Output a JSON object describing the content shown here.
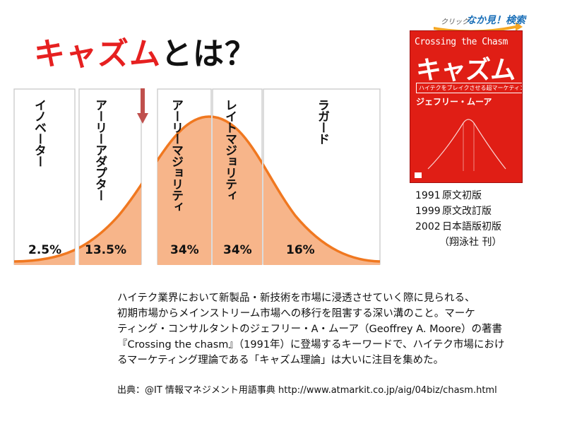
{
  "title": {
    "accent": "キャズム",
    "rest": "とは？"
  },
  "columns": [
    {
      "label": "イノベーター",
      "percent": "2.5%"
    },
    {
      "label": "アーリーアダプター",
      "percent": "13.5%"
    },
    {
      "label": "アーリーマジョリティ",
      "percent": "34%"
    },
    {
      "label": "レイトマジョリティ",
      "percent": "34%"
    },
    {
      "label": "ラガード",
      "percent": "16%"
    }
  ],
  "banner": {
    "click": "クリック",
    "main": "なか見！検索"
  },
  "book": {
    "english_title": "Crossing the Chasm",
    "title": "キャズム",
    "subtitle": "ハイテクをブレイクさせる超マーケティング理論",
    "author": "ジェフリー・ムーア"
  },
  "publication": [
    {
      "year": "1991",
      "text": "原文初版"
    },
    {
      "year": "1999",
      "text": "原文改訂版"
    },
    {
      "year": "2002",
      "text": "日本語版初版"
    }
  ],
  "publisher_note": "（翔泳社 刊）",
  "description": [
    "ハイテク業界において新製品・新技術を市場に浸透させていく際に見られる、",
    "初期市場からメインストリーム市場への移行を阻害する深い溝のこと。マーケ",
    "ティング・コンサルタントのジェフリー・A・ムーア（Geoffrey A. Moore）の著書",
    "『Crossing the chasm』（1991年）に登場するキーワードで、ハイテク市場におけ",
    "るマーケティング理論である「キャズム理論」は大いに注目を集めた。"
  ],
  "source": "出典：@IT 情報マネジメント用語事典 http://www.atmarkit.co.jp/aig/04biz/chasm.html",
  "colors": {
    "accent_red": "#e62020",
    "curve_orange": "#f07820",
    "fill_orange": "#f7b58a",
    "arrow": "#c0504d",
    "book_red": "#e01e15",
    "banner_blue": "#1a6fb8"
  }
}
